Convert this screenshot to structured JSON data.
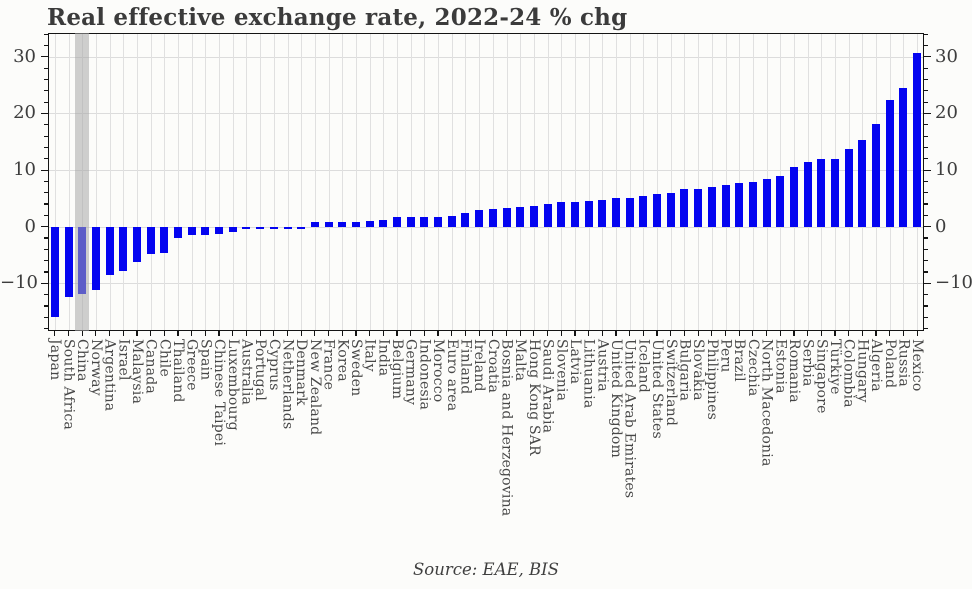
{
  "chart_data": {
    "type": "bar",
    "title": "Real effective exchange rate, 2022-24 % chg",
    "source": "Source: EAE, BIS",
    "categories": [
      "Japan",
      "South Africa",
      "China",
      "Norway",
      "Argentina",
      "Israel",
      "Malaysia",
      "Canada",
      "Chile",
      "Thailand",
      "Greece",
      "Spain",
      "Chinese Taipei",
      "Luxembourg",
      "Australia",
      "Portugal",
      "Cyprus",
      "Netherlands",
      "Denmark",
      "New Zealand",
      "France",
      "Korea",
      "Sweden",
      "Italy",
      "India",
      "Belgium",
      "Germany",
      "Indonesia",
      "Morocco",
      "Euro area",
      "Finland",
      "Ireland",
      "Croatia",
      "Bosnia and Herzegovina",
      "Malta",
      "Hong Kong SAR",
      "Saudi Arabia",
      "Slovenia",
      "Latvia",
      "Lithuania",
      "Austria",
      "United Kingdom",
      "United Arab Emirates",
      "Iceland",
      "United States",
      "Switzerland",
      "Bulgaria",
      "Slovakia",
      "Philippines",
      "Peru",
      "Brazil",
      "Czechia",
      "North Macedonia",
      "Estonia",
      "Romania",
      "Serbia",
      "Singapore",
      "Türkiye",
      "Colombia",
      "Hungary",
      "Algeria",
      "Poland",
      "Russia",
      "Mexico"
    ],
    "values": [
      -16.0,
      -12.4,
      -11.9,
      -11.1,
      -8.6,
      -7.8,
      -6.3,
      -4.8,
      -4.6,
      -2.0,
      -1.5,
      -1.4,
      -1.3,
      -0.9,
      -0.4,
      -0.3,
      -0.2,
      -0.15,
      -0.1,
      0.8,
      0.9,
      0.9,
      0.9,
      1.1,
      1.2,
      1.7,
      1.7,
      1.8,
      1.8,
      1.9,
      2.4,
      3.0,
      3.2,
      3.3,
      3.5,
      3.7,
      4.1,
      4.3,
      4.4,
      4.5,
      4.7,
      5.0,
      5.0,
      5.4,
      5.7,
      6.0,
      6.6,
      6.7,
      7.0,
      7.4,
      7.7,
      7.9,
      8.4,
      9.0,
      10.6,
      11.4,
      11.9,
      11.9,
      13.8,
      15.4,
      18.2,
      22.3,
      24.5,
      30.6
    ],
    "highlight_category": "China",
    "y_ticks": [
      -10,
      0,
      10,
      20,
      30
    ],
    "minor_tick_step": 2,
    "ylim": [
      -18.4,
      34.2
    ],
    "grid": true,
    "legend": "none",
    "colors": {
      "bar": "#0404f0",
      "highlight_band": "#a8a8a8",
      "grid": "#dcdcdc",
      "axis": "#141414",
      "title": "#3b3b3b",
      "tick_label": "#3d3d3d",
      "category_label": "#474747",
      "background": "#fcfcfa"
    }
  }
}
